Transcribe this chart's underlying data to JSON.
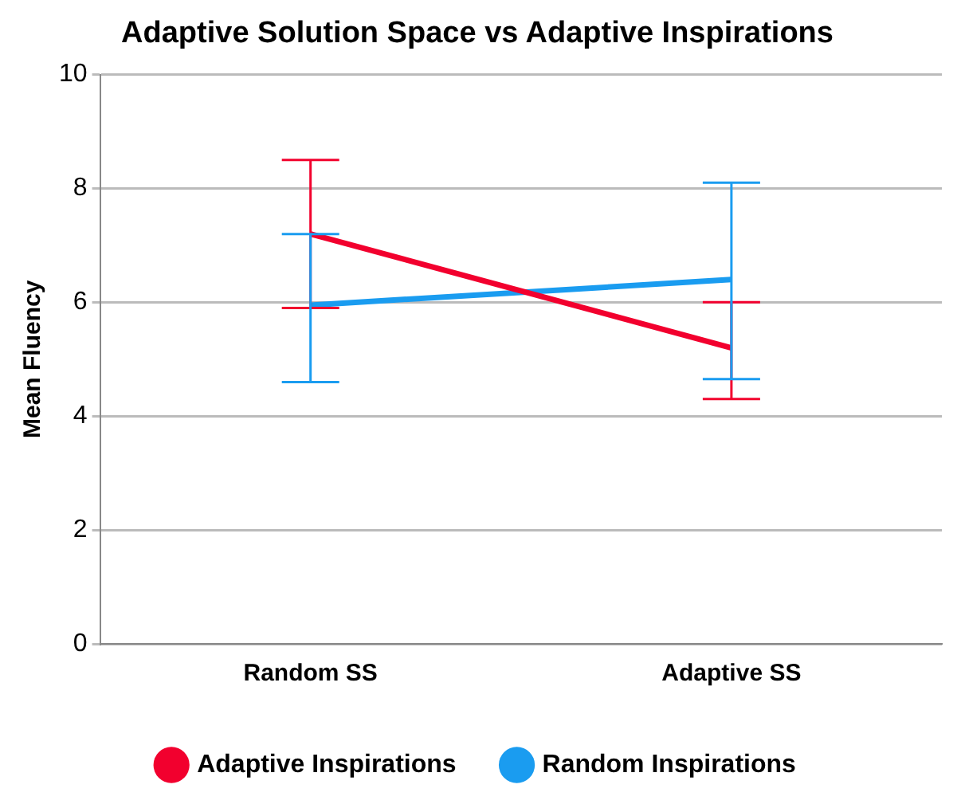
{
  "chart_data": {
    "type": "line",
    "title": "Adaptive Solution Space vs Adaptive Inspirations",
    "ylabel": "Mean Fluency",
    "categories": [
      "Random SS",
      "Adaptive SS"
    ],
    "series": [
      {
        "name": "Adaptive Inspirations",
        "color": "#f2002e",
        "values": [
          7.2,
          5.2
        ],
        "errors": [
          [
            5.9,
            8.5
          ],
          [
            4.3,
            6.0
          ]
        ]
      },
      {
        "name": "Random Inspirations",
        "color": "#1a9cf0",
        "values": [
          5.95,
          6.4
        ],
        "errors": [
          [
            4.6,
            7.2
          ],
          [
            4.65,
            8.1
          ]
        ]
      }
    ],
    "ylim": [
      0,
      10
    ],
    "yticks": [
      0,
      2,
      4,
      6,
      8,
      10
    ],
    "grid": "y",
    "legend": "bottom",
    "marker": "none",
    "line_style": "solid"
  }
}
